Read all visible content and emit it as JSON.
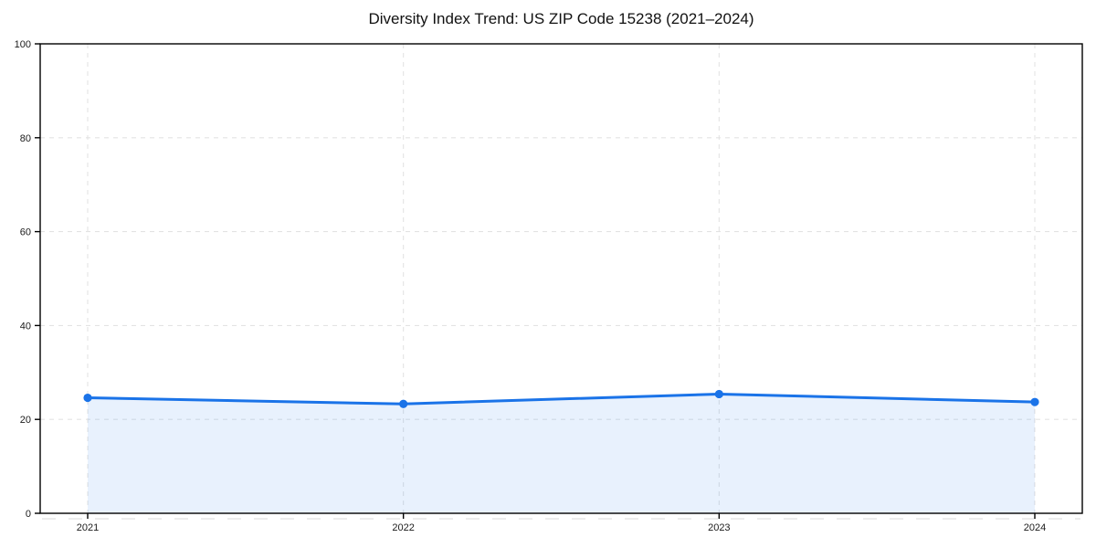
{
  "figure": {
    "title": "Diversity Index Trend: US ZIP Code 15238 (2021–2024)"
  },
  "chart_data": {
    "type": "line",
    "title": "Diversity Index Trend: US ZIP Code 15238 (2021–2024)",
    "categories": [
      "2021",
      "2022",
      "2023",
      "2024"
    ],
    "series": [
      {
        "name": "Diversity Index",
        "values": [
          24.6,
          23.3,
          25.4,
          23.7
        ]
      }
    ],
    "xlabel": "",
    "ylabel": "",
    "ylim": [
      0,
      100
    ],
    "yticks": [
      0,
      20,
      40,
      60,
      80,
      100
    ],
    "grid": true,
    "grid_style": "dashed",
    "legend": false,
    "area_fill": true,
    "minor_x_ticks_per_interval": 12,
    "style": {
      "line_color": "#1a73e8",
      "marker_color": "#1a73e8",
      "fill_color": "rgba(26,115,232,0.10)",
      "grid_color": "#e3e3e3",
      "minor_dash_color": "#e0e0e0",
      "spine_color": "#000000",
      "tick_color": "#000000",
      "tick_label_color": "#1a1a1a",
      "title_color": "#111111",
      "background": "#ffffff"
    }
  }
}
